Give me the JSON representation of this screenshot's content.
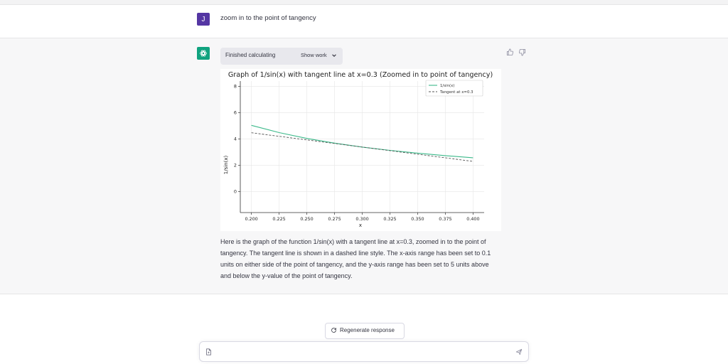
{
  "user_message": {
    "avatar_letter": "J",
    "text": "zoom in to the point of tangency"
  },
  "assistant": {
    "status": {
      "label": "Finished calculating",
      "show_work": "Show work"
    },
    "paragraph": "Here is the graph of the function 1/sin(x) with a tangent line at x=0.3, zoomed in to the point of tangency. The tangent line is shown in a dashed line style. The x-axis range has been set to 0.1 units on either side of the point of tangency, and the y-axis range has been set to 5 units above and below the y-value of the point of tangency."
  },
  "controls": {
    "regenerate_label": "Regenerate response"
  },
  "colors": {
    "accent": "#10a37f",
    "user_avatar": "#5436a3",
    "assistant_bg": "#f7f7f8",
    "series_color": "#3cb98a",
    "tangent_color": "#555555"
  },
  "chart_data": {
    "type": "line",
    "title": "Graph of 1/sin(x) with tangent line at x=0.3 (Zoomed in to point of tangency)",
    "xlabel": "x",
    "ylabel": "1/sin(x)",
    "xlim": [
      0.19,
      0.41
    ],
    "ylim": [
      -1.6,
      8.4
    ],
    "xticks": [
      0.2,
      0.225,
      0.25,
      0.275,
      0.3,
      0.325,
      0.35,
      0.375,
      0.4
    ],
    "xtick_labels": [
      "0.200",
      "0.225",
      "0.250",
      "0.275",
      "0.300",
      "0.325",
      "0.350",
      "0.375",
      "0.400"
    ],
    "yticks": [
      0,
      2,
      4,
      6,
      8
    ],
    "ytick_labels": [
      "0",
      "2",
      "4",
      "6",
      "8"
    ],
    "grid": true,
    "legend_position": "top-right",
    "series": [
      {
        "name": "1/sin(x)",
        "style": "solid",
        "x": [
          0.2,
          0.225,
          0.25,
          0.275,
          0.3,
          0.325,
          0.35,
          0.375,
          0.4
        ],
        "y": [
          5.03,
          4.48,
          4.04,
          3.68,
          3.38,
          3.13,
          2.92,
          2.73,
          2.57
        ]
      },
      {
        "name": "Tangent at x=0.3",
        "style": "dashed",
        "x": [
          0.2,
          0.4
        ],
        "y": [
          4.47,
          2.29
        ]
      }
    ]
  }
}
